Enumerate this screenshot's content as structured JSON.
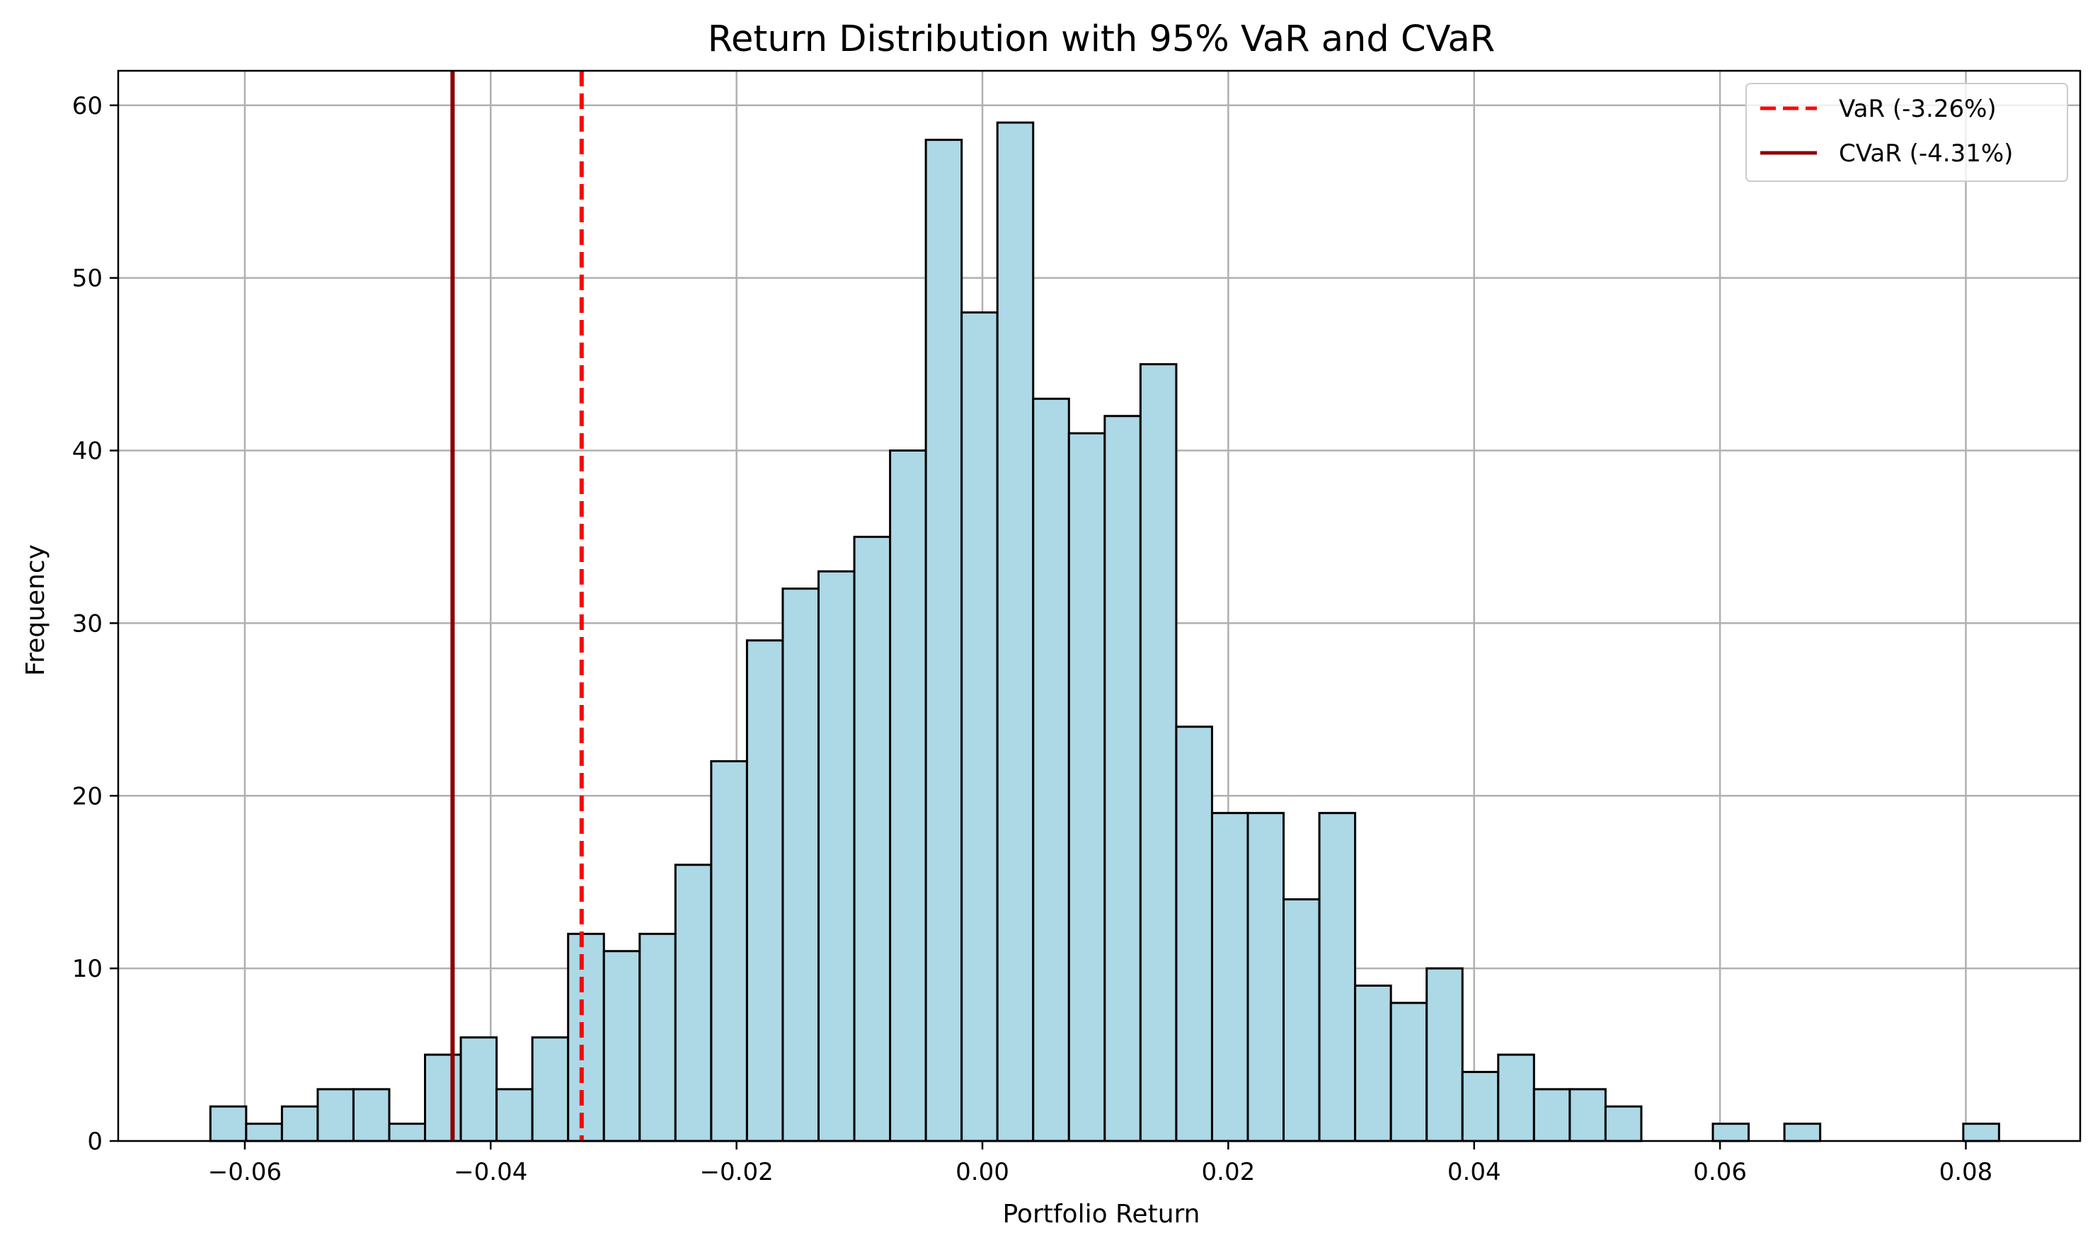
{
  "chart_data": {
    "type": "bar",
    "title": "Return Distribution with 95% VaR and CVaR",
    "xlabel": "Portfolio Return",
    "ylabel": "Frequency",
    "xlim": [
      -0.0703,
      0.0893
    ],
    "ylim": [
      0,
      62
    ],
    "xticks": [
      -0.06,
      -0.04,
      -0.02,
      0.0,
      0.02,
      0.04,
      0.06,
      0.08
    ],
    "xtick_labels": [
      "−0.06",
      "−0.04",
      "−0.02",
      "0.00",
      "0.02",
      "0.04",
      "0.06",
      "0.08"
    ],
    "yticks": [
      0,
      10,
      20,
      30,
      40,
      50,
      60
    ],
    "ytick_labels": [
      "0",
      "10",
      "20",
      "30",
      "40",
      "50",
      "60"
    ],
    "grid": true,
    "bin_start": -0.0628,
    "bin_width": 0.00291,
    "values": [
      2,
      1,
      2,
      3,
      3,
      1,
      5,
      6,
      3,
      6,
      12,
      11,
      12,
      16,
      22,
      29,
      32,
      33,
      35,
      40,
      58,
      48,
      59,
      43,
      41,
      42,
      45,
      24,
      19,
      19,
      14,
      19,
      9,
      8,
      10,
      4,
      5,
      3,
      3,
      2,
      0,
      0,
      1,
      0,
      1,
      0,
      0,
      0,
      0,
      1
    ],
    "bar_color": "#add8e6",
    "bar_edge_color": "#000000",
    "lines": [
      {
        "label": "VaR (-3.26%)",
        "x": -0.0326,
        "color": "#ff0000",
        "style": "dashed"
      },
      {
        "label": "CVaR (-4.31%)",
        "x": -0.0431,
        "color": "#8b0000",
        "style": "solid"
      }
    ],
    "legend_position": "top-right"
  }
}
